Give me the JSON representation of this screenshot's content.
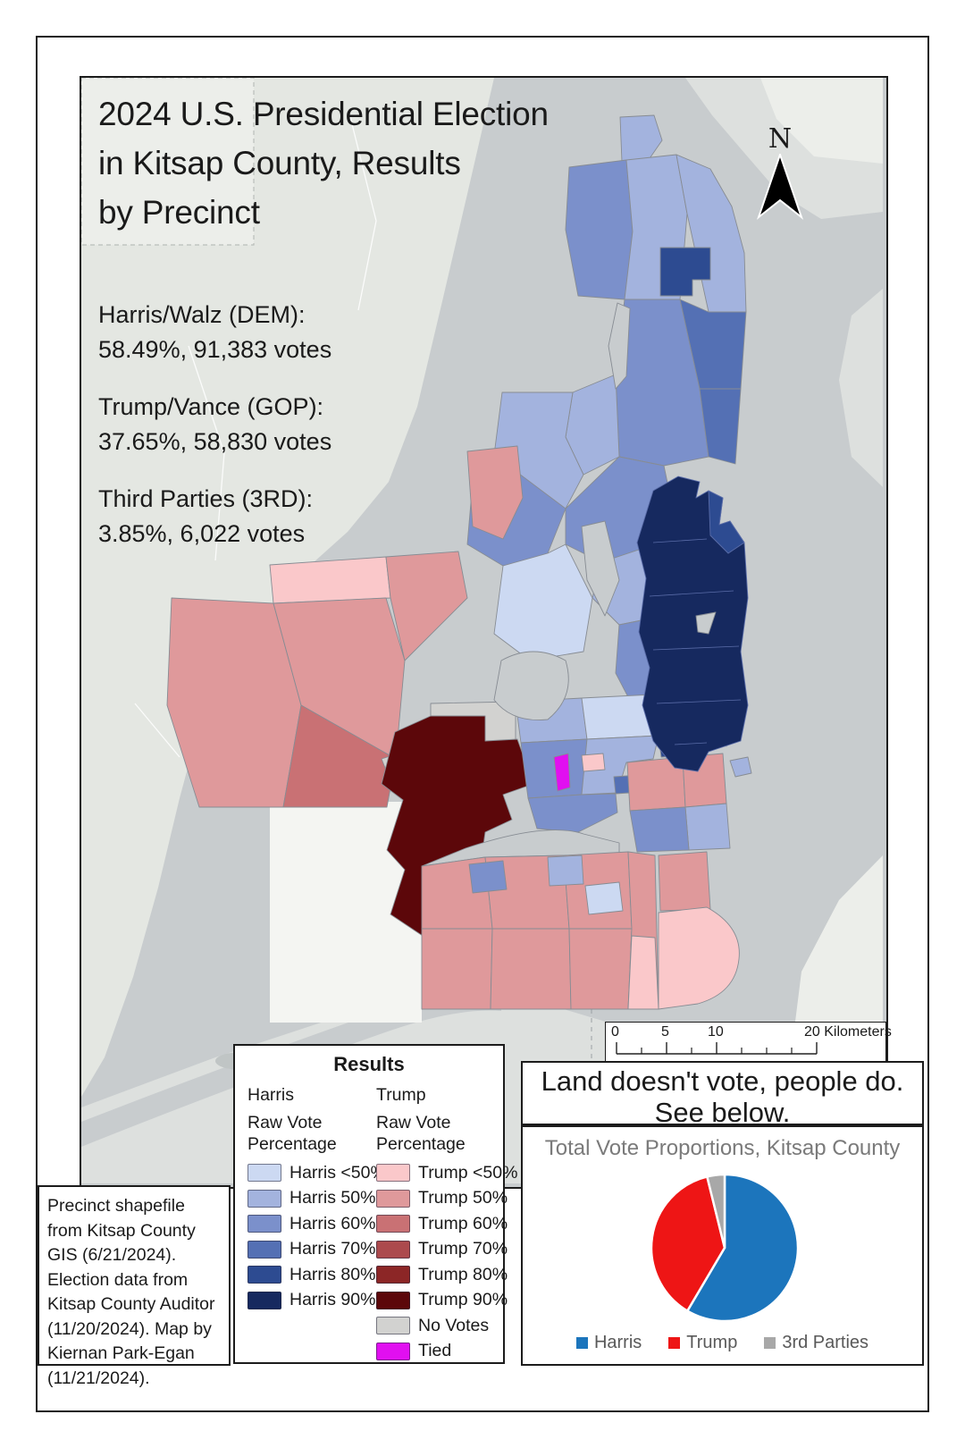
{
  "title": {
    "line1": "2024 U.S. Presidential Election",
    "line2": "in Kitsap County, Results",
    "line3": "by Precinct"
  },
  "stats": [
    {
      "label": "Harris/Walz (DEM):",
      "value": "58.49%, 91,383 votes"
    },
    {
      "label": "Trump/Vance (GOP):",
      "value": "37.65%, 58,830 votes"
    },
    {
      "label": "Third Parties (3RD):",
      "value": "3.85%, 6,022 votes"
    }
  ],
  "north": {
    "label": "N"
  },
  "scalebar": {
    "t0": "0",
    "t5": "5",
    "t10": "10",
    "t20": "20 Kilometers"
  },
  "legend": {
    "title": "Results",
    "harris": {
      "name": "Harris",
      "sub1": "Raw Vote",
      "sub2": "Percentage",
      "items": [
        {
          "label": "Harris <50%",
          "color": "#ccd9f2"
        },
        {
          "label": "Harris 50%",
          "color": "#a3b3de"
        },
        {
          "label": "Harris 60%",
          "color": "#7b90cb"
        },
        {
          "label": "Harris 70%",
          "color": "#5470b4"
        },
        {
          "label": "Harris 80%",
          "color": "#2d4b91"
        },
        {
          "label": "Harris 90%",
          "color": "#16295f"
        }
      ]
    },
    "trump": {
      "name": "Trump",
      "sub1": "Raw Vote",
      "sub2": "Percentage",
      "items": [
        {
          "label": "Trump <50%",
          "color": "#fac8ca"
        },
        {
          "label": "Trump 50%",
          "color": "#df999b"
        },
        {
          "label": "Trump 60%",
          "color": "#c97174"
        },
        {
          "label": "Trump 70%",
          "color": "#ac4a4d"
        },
        {
          "label": "Trump 80%",
          "color": "#8c2626"
        },
        {
          "label": "Trump 90%",
          "color": "#5c070a"
        },
        {
          "label": "No Votes",
          "color": "#d2d2d0"
        },
        {
          "label": "Tied",
          "color": "#e10ff0"
        }
      ]
    }
  },
  "quote": {
    "line1": "Land doesn't vote, people do.",
    "line2": "See below."
  },
  "credits": {
    "text": "Precinct shapefile from Kitsap County GIS (6/21/2024). Election data from Kitsap County Auditor (11/20/2024). Map by Kiernan Park-Egan (11/21/2024)."
  },
  "chart_data": {
    "type": "pie",
    "title": "Total Vote Proportions, Kitsap County",
    "legend_position": "bottom",
    "units": "percent",
    "slices": [
      {
        "label": "Harris",
        "value": 58.49,
        "color": "#1c75bc"
      },
      {
        "label": "Trump",
        "value": 37.65,
        "color": "#ee1515"
      },
      {
        "label": "3rd Parties",
        "value": 3.85,
        "color": "#a8a8a8"
      }
    ]
  },
  "map": {
    "region": "Kitsap County, WA",
    "colors": {
      "water": "#c8ccce",
      "land": "#e4e7e2",
      "land2": "#dde0de",
      "land3": "#cdd1d0",
      "light": "#eceeea",
      "flat": "#c0c5c5",
      "nodata": "#f4f5f2",
      "stroke": "#878c93",
      "h_lt50": "#ccd9f2",
      "h50": "#a3b3de",
      "h60": "#7b90cb",
      "h70": "#5470b4",
      "h80": "#2d4b91",
      "h90": "#16295f",
      "t_lt50": "#fac8ca",
      "t50": "#df999b",
      "t60": "#c97174",
      "t70": "#ac4a4d",
      "t80": "#8c2626",
      "t90": "#5c070a",
      "novotes": "#d2d2d0",
      "tied": "#e10ff0"
    }
  }
}
